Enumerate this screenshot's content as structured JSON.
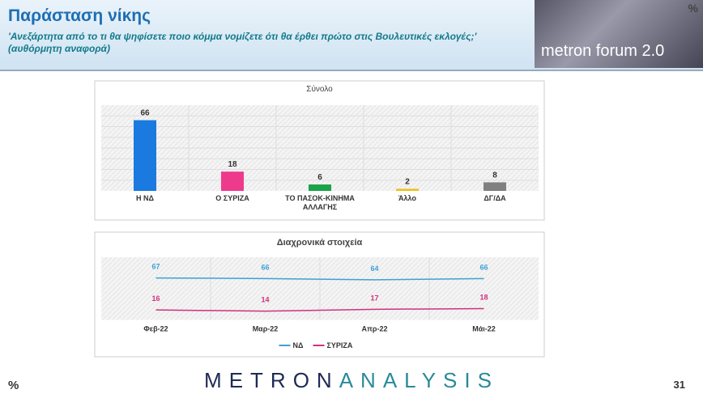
{
  "header": {
    "title": "Παράσταση νίκης",
    "subtitle": "'Ανεξάρτητα από το τι θα ψηφίσετε ποιο κόμμα νομίζετε ότι θα έρθει πρώτο στις Βουλευτικές εκλογές;' (αυθόρμητη αναφορά)",
    "logo": "metron forum 2.0",
    "logo_mark": "%"
  },
  "footer": {
    "mark": "%",
    "brand_a": "METRON",
    "brand_b": "ANALYSIS",
    "page": "31"
  },
  "chart_data": [
    {
      "type": "bar",
      "title": "Σύνολο",
      "categories": [
        "Η ΝΔ",
        "Ο ΣΥΡΙΖΑ",
        "ΤΟ ΠΑΣΟΚ-ΚΙΝΗΜΑ ΑΛΛΑΓΗΣ",
        "Άλλο",
        "ΔΓ/ΔΑ"
      ],
      "values": [
        66,
        18,
        6,
        2,
        8
      ],
      "colors": [
        "#1a7ae0",
        "#ee3a8c",
        "#1aa34a",
        "#f0c020",
        "#808080"
      ],
      "ylim": [
        0,
        80
      ]
    },
    {
      "type": "line",
      "title": "Διαχρονικά στοιχεία",
      "categories": [
        "Φεβ-22",
        "Μαρ-22",
        "Απρ-22",
        "Μάι-22"
      ],
      "series": [
        {
          "name": "ΝΔ",
          "color": "#3ea0d8",
          "values": [
            67,
            66,
            64,
            66
          ]
        },
        {
          "name": "ΣΥΡΙΖΑ",
          "color": "#d0317f",
          "values": [
            16,
            14,
            17,
            18
          ]
        }
      ],
      "ylim": [
        0,
        100
      ],
      "legend": "bottom"
    }
  ]
}
